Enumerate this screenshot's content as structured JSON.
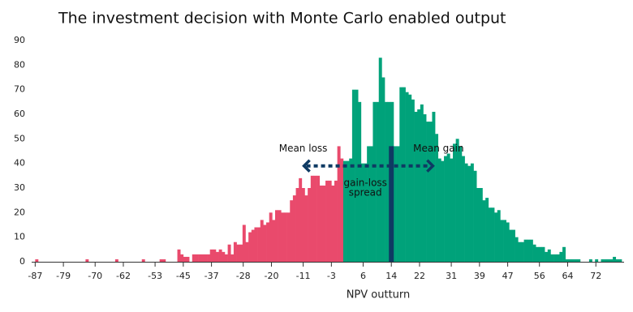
{
  "chart_data": {
    "type": "histogram",
    "title": "The investment decision with Monte Carlo enabled output",
    "x_label": "NPV outturn",
    "bins": [
      -87,
      -86.16,
      -85.32,
      -84.48,
      -83.64,
      -82.8,
      -81.96,
      -81.12,
      -80.28,
      -79.44,
      -78.6,
      -77.76,
      -76.92,
      -76.08,
      -75.24,
      -74.4,
      -73.56,
      -72.72,
      -71.88,
      -71.04,
      -70.2,
      -69.36,
      -68.52,
      -67.68,
      -66.84,
      -66,
      -65.16,
      -64.32,
      -63.48,
      -62.64,
      -61.8,
      -60.96,
      -60.12,
      -59.28,
      -58.44,
      -57.6,
      -56.76,
      -55.92,
      -55.08,
      -54.24,
      -53.4,
      -52.56,
      -51.72,
      -50.88,
      -50.04,
      -49.2,
      -48.36,
      -47.52,
      -46.68,
      -45.84,
      -45,
      -44.16,
      -43.32,
      -42.48,
      -41.64,
      -40.8,
      -39.96,
      -39.12,
      -38.28,
      -37.44,
      -36.6,
      -35.76,
      -34.92,
      -34.08,
      -33.24,
      -32.4,
      -31.56,
      -30.72,
      -29.88,
      -29.04,
      -28.2,
      -27.36,
      -26.52,
      -25.68,
      -24.84,
      -24,
      -23.16,
      -22.32,
      -21.48,
      -20.64,
      -19.8,
      -18.96,
      -18.12,
      -17.28,
      -16.44,
      -15.6,
      -14.76,
      -13.92,
      -13.08,
      -12.24,
      -11.4,
      -10.56,
      -9.72,
      -8.88,
      -8.04,
      -7.2,
      -6.36,
      -5.52,
      -4.68,
      -3.84,
      -3,
      -2.16,
      -1.32,
      -0.48,
      0.36,
      1.2,
      2.04,
      2.88,
      3.72,
      4.56,
      5.4,
      6.24,
      7.08,
      7.92,
      8.76,
      9.6,
      10.44,
      11.28,
      12.12,
      12.96,
      13.8,
      14.64,
      15.48,
      16.32,
      17.16,
      18,
      18.84,
      19.68,
      20.52,
      21.36,
      22.2,
      23.04,
      23.88,
      24.72,
      25.56,
      26.4,
      27.24,
      28.08,
      28.92,
      29.76,
      30.6,
      31.44,
      32.28,
      33.12,
      33.96,
      34.8,
      35.64,
      36.48,
      37.32,
      38.16,
      39,
      39.84,
      40.68,
      41.52,
      42.36,
      43.2,
      44.04,
      44.88,
      45.72,
      46.56,
      47.4,
      48.24,
      49.08,
      49.92,
      50.76,
      51.6,
      52.44,
      53.28,
      54.12,
      54.96,
      55.8,
      56.64,
      57.48,
      58.32,
      59.16,
      60,
      60.84,
      61.68,
      62.52,
      63.36,
      64.2,
      65.04,
      65.88,
      66.72,
      67.56,
      68.4,
      69.24,
      70.08,
      70.92,
      71.76,
      72.6,
      73.44,
      74.28,
      75.12,
      75.96,
      76.8,
      77.64,
      78.48,
      79.32
    ],
    "values": [
      1,
      0,
      0,
      0,
      0,
      0,
      0,
      0,
      0,
      0,
      0,
      0,
      0,
      0,
      0,
      0,
      0,
      1,
      0,
      0,
      0,
      0,
      0,
      0,
      0,
      0,
      0,
      1,
      0,
      0,
      0,
      0,
      0,
      0,
      0,
      0,
      1,
      0,
      0,
      0,
      0,
      0,
      1,
      1,
      0,
      0,
      0,
      0,
      5,
      3,
      2,
      2,
      0,
      3,
      3,
      3,
      3,
      3,
      3,
      5,
      5,
      4,
      5,
      4,
      3,
      7,
      3,
      8,
      7,
      7,
      15,
      8,
      12,
      13,
      14,
      14,
      17,
      15,
      16,
      20,
      17,
      21,
      21,
      20,
      20,
      20,
      25,
      27,
      30,
      34,
      30,
      27,
      30,
      35,
      35,
      35,
      31,
      31,
      33,
      33,
      31,
      33,
      47,
      42,
      41,
      41,
      42,
      70,
      70,
      65,
      40,
      40,
      47,
      47,
      65,
      65,
      83,
      75,
      65,
      65,
      65,
      47,
      47,
      71,
      71,
      69,
      68,
      66,
      61,
      62,
      64,
      60,
      57,
      57,
      61,
      52,
      42,
      41,
      43,
      44,
      42,
      48,
      50,
      47,
      43,
      40,
      39,
      40,
      37,
      30,
      30,
      25,
      26,
      22,
      22,
      20,
      21,
      17,
      17,
      16,
      13,
      13,
      10,
      8,
      8,
      9,
      9,
      9,
      7,
      6,
      6,
      6,
      4,
      5,
      3,
      3,
      3,
      4,
      6,
      1,
      1,
      1,
      1,
      1,
      0,
      0,
      0,
      1,
      0,
      1,
      0,
      1,
      1,
      1,
      1,
      2,
      1,
      1
    ],
    "colors": {
      "negative": "#e94a6c",
      "positive": "#00a27a",
      "annotation": "#0e3a63"
    },
    "xlim": [
      -88,
      80
    ],
    "xticks": [
      -87,
      -79,
      -70,
      -62,
      -53,
      -45,
      -37,
      -28,
      -20,
      -11,
      -3,
      6,
      14,
      22,
      31,
      39,
      47,
      56,
      64,
      72
    ],
    "ylim": [
      0,
      90
    ],
    "yticks": [
      0,
      10,
      20,
      30,
      40,
      50,
      60,
      70,
      80,
      90
    ],
    "grid": false,
    "spread": {
      "label": "gain-loss spread",
      "x": 14,
      "top": 47
    },
    "arrow_y": 39,
    "mean_loss": {
      "label": "Mean loss",
      "x": -11
    },
    "mean_gain": {
      "label": "Mean gain",
      "x": 26
    }
  }
}
